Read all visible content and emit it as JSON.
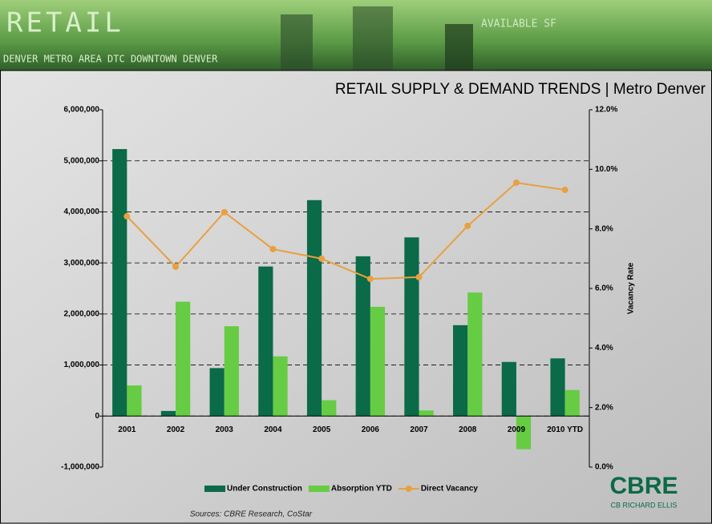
{
  "header": {
    "title": "RETAIL",
    "ticker": "DENVER METRO AREA DTC DOWNTOWN DENVER",
    "available": "AVAILABLE SF"
  },
  "chart_data": {
    "type": "bar",
    "title": "RETAIL SUPPLY & DEMAND TRENDS | Metro Denver",
    "categories": [
      "2001",
      "2002",
      "2003",
      "2004",
      "2005",
      "2006",
      "2007",
      "2008",
      "2009",
      "2010 YTD"
    ],
    "series": [
      {
        "name": "Under Construction",
        "color": "#0b6a48",
        "values": [
          5230000,
          100000,
          940000,
          2930000,
          4230000,
          3130000,
          3500000,
          1780000,
          1060000,
          1130000
        ]
      },
      {
        "name": "Absorption YTD",
        "color": "#66cc44",
        "values": [
          600000,
          2240000,
          1760000,
          1170000,
          310000,
          2140000,
          110000,
          2420000,
          -650000,
          510000
        ]
      },
      {
        "name": "Direct Vacancy",
        "color": "#e8a040",
        "type": "line",
        "axis": "y2",
        "values": [
          8.42,
          6.73,
          8.56,
          7.32,
          7.0,
          6.32,
          6.38,
          8.1,
          9.55,
          9.31
        ]
      }
    ],
    "ylim": [
      -1000000,
      6000000
    ],
    "yticks": [
      {
        "value": -1000000,
        "label": "-1,000,000"
      },
      0,
      {
        "value": 1000000,
        "label": "1,000,000"
      },
      {
        "value": 2000000,
        "label": "2,000,000"
      },
      {
        "value": 3000000,
        "label": "3,000,000"
      },
      {
        "value": 4000000,
        "label": "4,000,000"
      },
      {
        "value": 5000000,
        "label": "5,000,000"
      },
      {
        "value": 6000000,
        "label": "6,000,000"
      }
    ],
    "y2lim": [
      0,
      12
    ],
    "y2ticks": [
      {
        "value": 0,
        "label": "0.0%"
      },
      {
        "value": 2,
        "label": "2.0%"
      },
      {
        "value": 4,
        "label": "4.0%"
      },
      {
        "value": 6,
        "label": "6.0%"
      },
      {
        "value": 8,
        "label": "8.0%"
      },
      {
        "value": 10,
        "label": "10.0%"
      },
      {
        "value": 12,
        "label": "12.0%"
      }
    ],
    "y2label": "Vacancy Rate",
    "grid": true,
    "legend": "bottom",
    "source": "Sources: CBRE Research, CoStar"
  },
  "logo": {
    "name": "CBRE",
    "sub": "CB RICHARD ELLIS"
  }
}
